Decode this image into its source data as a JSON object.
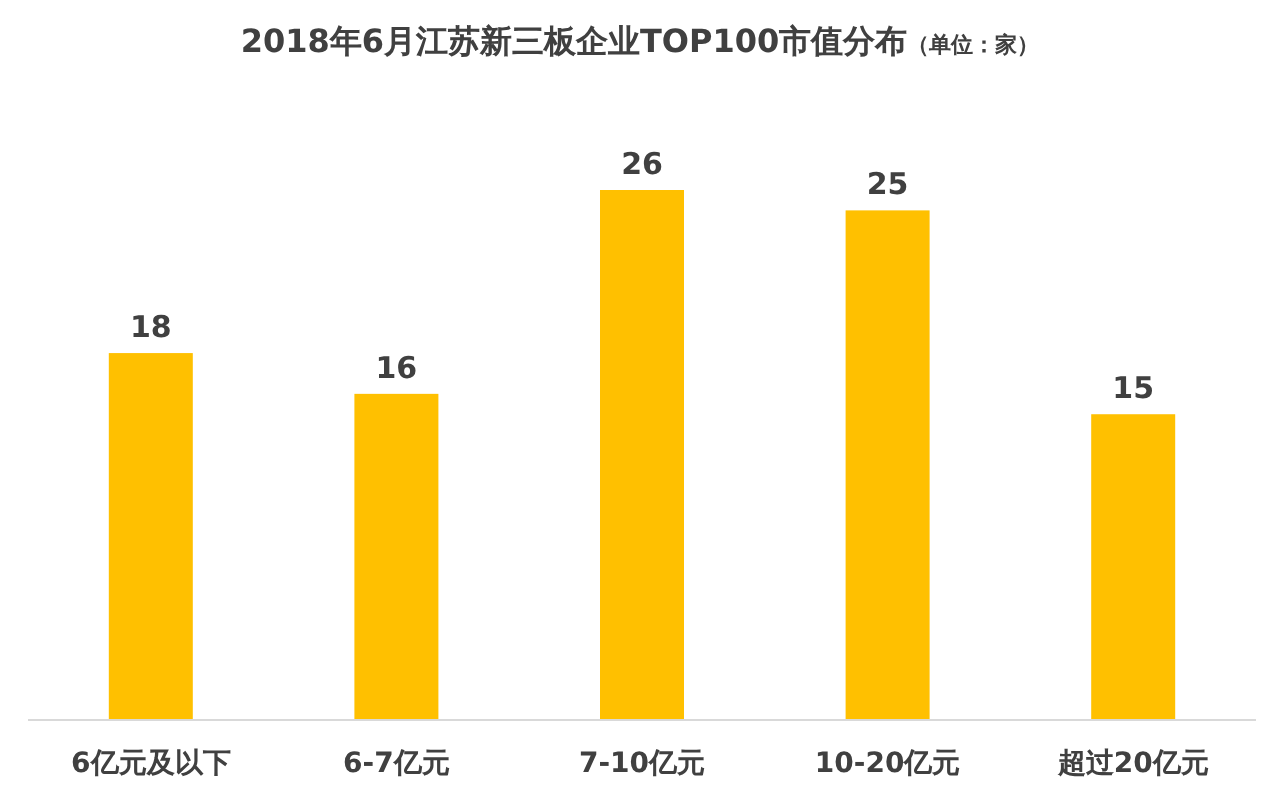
{
  "chart_data": {
    "type": "bar",
    "title": "2018年6月江苏新三板企业TOP100市值分布",
    "subtitle": "（单位：家）",
    "categories": [
      "6亿元及以下",
      "6-7亿元",
      "7-10亿元",
      "10-20亿元",
      "超过20亿元"
    ],
    "values": [
      18,
      16,
      26,
      25,
      15
    ],
    "color": "#ffc000",
    "data_labels": true
  }
}
